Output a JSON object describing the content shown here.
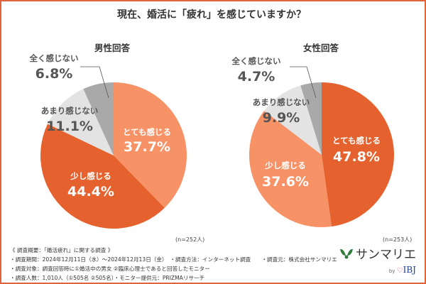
{
  "title": "現在、婚活に「疲れ」を感じていますか？",
  "colors": {
    "frame": "#e2643a",
    "dark_orange": "#e5622f",
    "light_orange": "#f79267",
    "light_gray": "#e3e3e3",
    "dark_gray": "#a9a9a9",
    "label_gray": "#555555"
  },
  "chart_data": [
    {
      "type": "pie",
      "title": "男性回答",
      "note": "(n=252人)",
      "slices": [
        {
          "label": "とても感じる",
          "value": 37.7,
          "display": "37.7%",
          "color": "#f79267"
        },
        {
          "label": "少し感じる",
          "value": 44.4,
          "display": "44.4%",
          "color": "#e5622f"
        },
        {
          "label": "あまり感じない",
          "value": 11.1,
          "display": "11.1%",
          "color": "#e3e3e3"
        },
        {
          "label": "全く感じない",
          "value": 6.8,
          "display": "6.8%",
          "color": "#a9a9a9"
        }
      ]
    },
    {
      "type": "pie",
      "title": "女性回答",
      "note": "(n=253人)",
      "slices": [
        {
          "label": "とても感じる",
          "value": 47.8,
          "display": "47.8%",
          "color": "#e5622f"
        },
        {
          "label": "少し感じる",
          "value": 37.6,
          "display": "37.6%",
          "color": "#f79267"
        },
        {
          "label": "あまり感じない",
          "value": 9.9,
          "display": "9.9%",
          "color": "#e3e3e3"
        },
        {
          "label": "全く感じない",
          "value": 4.7,
          "display": "4.7%",
          "color": "#a9a9a9"
        }
      ]
    }
  ],
  "footer": {
    "lines": [
      "《 調査概要：「婚活疲れ」に関する調査 》",
      "・調査期間：2024年12月11日（水）～2024年12月13日（金）　・調査方法：インターネット調査　　・調査元：株式会社サンマリエ",
      "・調査対象：調査回答時に①婚活中の男女 ②臨床心理士であると回答したモニター",
      "・調査人数：1,010人（①505名 ②505名）・モニター提供元：PRIZMAリサーチ"
    ]
  },
  "logo": {
    "brand": "サンマリエ",
    "by": "by",
    "partner": "IBJ"
  }
}
